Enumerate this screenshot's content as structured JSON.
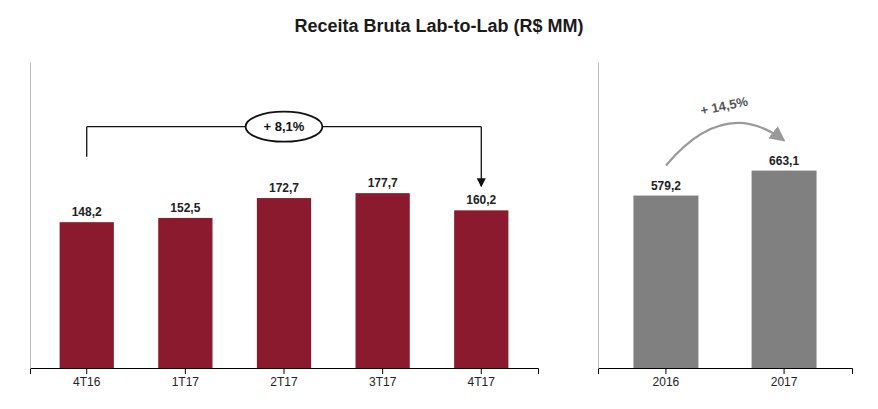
{
  "chart_data": [
    {
      "type": "bar",
      "title": "Receita Bruta Lab-to-Lab (R$ MM)",
      "categories": [
        "4T16",
        "1T17",
        "2T17",
        "3T17",
        "4T17"
      ],
      "values": [
        148.2,
        152.5,
        172.7,
        177.7,
        160.2
      ],
      "value_labels": [
        "148,2",
        "152,5",
        "172,7",
        "177,7",
        "160,2"
      ],
      "color": "#8B1A2E",
      "ylim": [
        0,
        310.975
      ],
      "yticks": [],
      "tick_labels": "x",
      "data_labels": true,
      "grid": false,
      "annotations": [
        "+ 8,1%"
      ]
    },
    {
      "type": "bar",
      "categories": [
        "2016",
        "2017"
      ],
      "values": [
        579.2,
        663.1
      ],
      "value_labels": [
        "579,2",
        "663,1"
      ],
      "color": "#808080",
      "ylim": [
        0,
        1027.805
      ],
      "yticks": [],
      "tick_labels": "x",
      "data_labels": true,
      "grid": false,
      "annotations": [
        "+ 14,5%"
      ]
    }
  ]
}
